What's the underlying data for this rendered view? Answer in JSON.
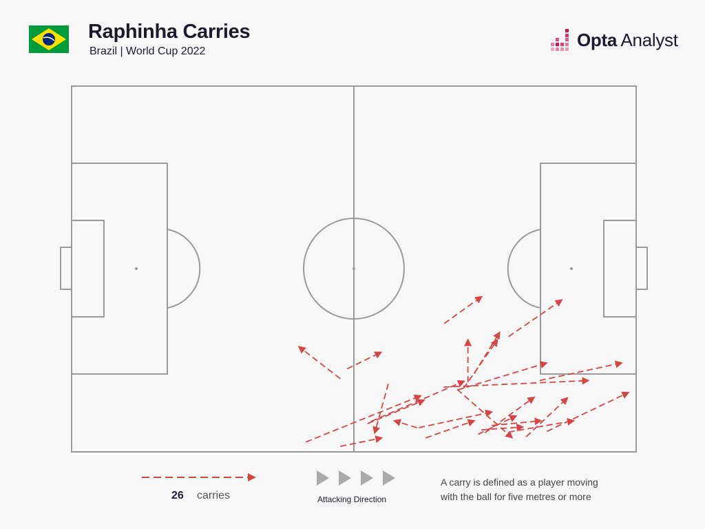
{
  "header": {
    "title": "Raphinha Carries",
    "subtitle": "Brazil | World Cup 2022"
  },
  "brand": {
    "name_bold": "Opta",
    "name_regular": " Analyst"
  },
  "legend": {
    "count": "26",
    "unit": "carries",
    "direction_label": "Attacking Direction",
    "note_line1": "A carry is defined as a player moving",
    "note_line2": "with the ball for five metres or more"
  },
  "colors": {
    "carry": "#d64545",
    "pitch_lines": "#9a9a9a",
    "brand_accent": "#d4145a",
    "flag_green": "#009c3b",
    "flag_yellow": "#ffdf00",
    "flag_blue": "#002776"
  },
  "chart_data": {
    "type": "pitch_arrows",
    "title": "Raphinha Carries",
    "subtitle": "Brazil | World Cup 2022",
    "pitch": {
      "length": 100,
      "width": 100,
      "attacking_direction": "left-to-right"
    },
    "carries": [
      {
        "x1": 47.6,
        "y1": 20.0,
        "x2": 40.3,
        "y2": 28.7
      },
      {
        "x1": 48.8,
        "y1": 22.7,
        "x2": 54.8,
        "y2": 27.2
      },
      {
        "x1": 66.0,
        "y1": 35.1,
        "x2": 72.6,
        "y2": 42.4
      },
      {
        "x1": 77.4,
        "y1": 31.5,
        "x2": 86.8,
        "y2": 41.5
      },
      {
        "x1": 70.2,
        "y1": 19.0,
        "x2": 70.2,
        "y2": 30.6
      },
      {
        "x1": 71.3,
        "y1": 21.4,
        "x2": 75.8,
        "y2": 32.6
      },
      {
        "x1": 69.4,
        "y1": 17.3,
        "x2": 75.4,
        "y2": 30.6
      },
      {
        "x1": 65.9,
        "y1": 17.7,
        "x2": 91.5,
        "y2": 19.5
      },
      {
        "x1": 68.3,
        "y1": 16.9,
        "x2": 84.1,
        "y2": 24.3
      },
      {
        "x1": 41.5,
        "y1": 2.7,
        "x2": 61.8,
        "y2": 15.3
      },
      {
        "x1": 47.6,
        "y1": 1.5,
        "x2": 54.9,
        "y2": 3.8
      },
      {
        "x1": 56.1,
        "y1": 18.6,
        "x2": 53.7,
        "y2": 5.2
      },
      {
        "x1": 52.4,
        "y1": 7.7,
        "x2": 62.4,
        "y2": 14.1
      },
      {
        "x1": 53.0,
        "y1": 8.3,
        "x2": 69.5,
        "y2": 19.3
      },
      {
        "x1": 61.5,
        "y1": 6.6,
        "x2": 74.4,
        "y2": 10.9
      },
      {
        "x1": 62.7,
        "y1": 3.8,
        "x2": 71.3,
        "y2": 8.5
      },
      {
        "x1": 72.0,
        "y1": 4.8,
        "x2": 78.7,
        "y2": 9.8
      },
      {
        "x1": 73.2,
        "y1": 5.2,
        "x2": 81.9,
        "y2": 14.9
      },
      {
        "x1": 80.5,
        "y1": 4.1,
        "x2": 87.8,
        "y2": 14.7
      },
      {
        "x1": 84.2,
        "y1": 5.6,
        "x2": 98.6,
        "y2": 16.2
      },
      {
        "x1": 82.9,
        "y1": 19.5,
        "x2": 97.4,
        "y2": 24.3
      },
      {
        "x1": 77.4,
        "y1": 5.4,
        "x2": 88.9,
        "y2": 8.5
      },
      {
        "x1": 72.6,
        "y1": 6.0,
        "x2": 79.9,
        "y2": 6.8
      },
      {
        "x1": 68.3,
        "y1": 17.1,
        "x2": 78.0,
        "y2": 3.9
      },
      {
        "x1": 61.2,
        "y1": 6.6,
        "x2": 57.2,
        "y2": 8.5
      },
      {
        "x1": 74.4,
        "y1": 7.2,
        "x2": 83.1,
        "y2": 8.5
      }
    ]
  }
}
